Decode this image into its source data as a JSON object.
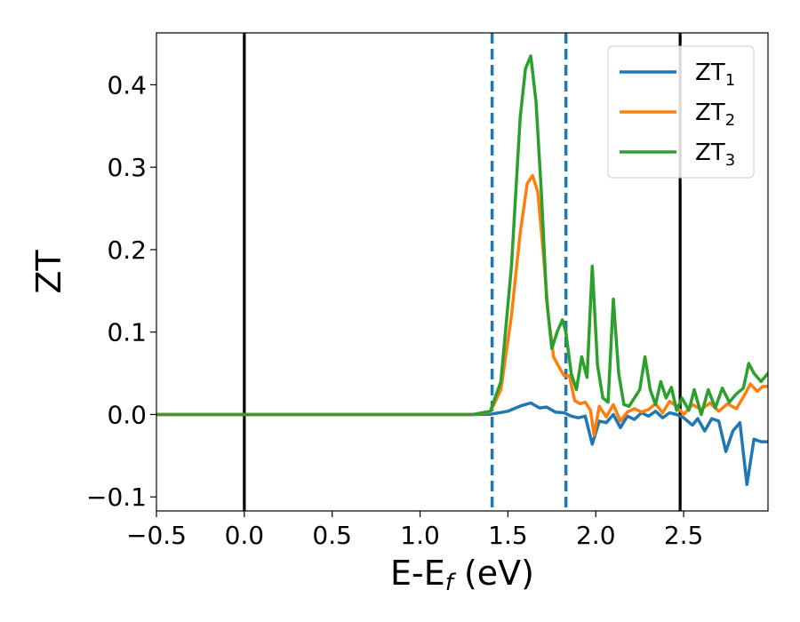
{
  "chart_data": {
    "type": "line",
    "title": "",
    "xlabel": "E-E",
    "xlabel_sub": "f",
    "xlabel_unit": " (eV)",
    "ylabel": "ZT",
    "xlim": [
      -0.5,
      2.98
    ],
    "ylim": [
      -0.117,
      0.463
    ],
    "xticks": [
      -0.5,
      0.0,
      0.5,
      1.0,
      1.5,
      2.0,
      2.5
    ],
    "xtick_labels": [
      "−0.5",
      "0.0",
      "0.5",
      "1.0",
      "1.5",
      "2.0",
      "2.5"
    ],
    "yticks": [
      -0.1,
      0.0,
      0.1,
      0.2,
      0.3,
      0.4
    ],
    "ytick_labels": [
      "−0.1",
      "0.0",
      "0.1",
      "0.2",
      "0.3",
      "0.4"
    ],
    "grid": false,
    "legend_position": "top-right",
    "vertical_lines": [
      {
        "x": 0.0,
        "style": "solid",
        "color": "#000000"
      },
      {
        "x": 2.48,
        "style": "solid",
        "color": "#000000"
      },
      {
        "x": 1.41,
        "style": "dashed",
        "color": "#1f77b4"
      },
      {
        "x": 1.83,
        "style": "dashed",
        "color": "#1f77b4"
      }
    ],
    "series": [
      {
        "name": "ZT",
        "sub": "1",
        "color": "#1f77b4",
        "x": [
          -0.5,
          1.3,
          1.4,
          1.5,
          1.58,
          1.63,
          1.68,
          1.72,
          1.77,
          1.82,
          1.86,
          1.9,
          1.94,
          1.98,
          2.02,
          2.06,
          2.1,
          2.14,
          2.18,
          2.22,
          2.26,
          2.3,
          2.34,
          2.38,
          2.42,
          2.46,
          2.5,
          2.55,
          2.58,
          2.62,
          2.66,
          2.7,
          2.74,
          2.78,
          2.82,
          2.86,
          2.9,
          2.94,
          2.98
        ],
        "y": [
          0,
          0,
          0.0003,
          0.004,
          0.011,
          0.014,
          0.008,
          0.009,
          0.003,
          0.002,
          -0.002,
          -0.004,
          -0.002,
          -0.036,
          -0.008,
          -0.01,
          0.0,
          -0.016,
          -0.002,
          -0.006,
          0.002,
          -0.002,
          0.004,
          -0.004,
          0.002,
          0.0,
          -0.004,
          -0.013,
          -0.005,
          -0.02,
          -0.005,
          -0.008,
          -0.045,
          -0.02,
          -0.01,
          -0.085,
          -0.03,
          -0.033,
          -0.033
        ]
      },
      {
        "name": "ZT",
        "sub": "2",
        "color": "#ff7f0e",
        "x": [
          -0.5,
          1.3,
          1.4,
          1.46,
          1.52,
          1.57,
          1.61,
          1.64,
          1.67,
          1.7,
          1.73,
          1.76,
          1.79,
          1.82,
          1.85,
          1.88,
          1.91,
          1.94,
          1.97,
          1.99,
          2.02,
          2.06,
          2.1,
          2.14,
          2.18,
          2.22,
          2.26,
          2.3,
          2.34,
          2.38,
          2.42,
          2.46,
          2.5,
          2.55,
          2.6,
          2.65,
          2.7,
          2.75,
          2.8,
          2.85,
          2.88,
          2.92,
          2.95,
          2.98
        ],
        "y": [
          0,
          0,
          0.003,
          0.03,
          0.12,
          0.22,
          0.28,
          0.29,
          0.27,
          0.2,
          0.12,
          0.07,
          0.058,
          0.047,
          0.047,
          0.017,
          0.013,
          0.015,
          0.005,
          -0.025,
          0.01,
          -0.003,
          0.012,
          -0.008,
          0.003,
          0.007,
          0.003,
          0.006,
          0.013,
          0.002,
          0.016,
          0.01,
          0.0,
          0.012,
          0.006,
          0.014,
          0.004,
          0.013,
          0.007,
          0.025,
          0.037,
          0.028,
          0.034,
          0.034
        ]
      },
      {
        "name": "ZT",
        "sub": "3",
        "color": "#2ca02c",
        "x": [
          -0.5,
          1.3,
          1.4,
          1.46,
          1.52,
          1.57,
          1.6,
          1.63,
          1.66,
          1.69,
          1.72,
          1.75,
          1.78,
          1.81,
          1.83,
          1.86,
          1.89,
          1.92,
          1.95,
          1.98,
          2.01,
          2.04,
          2.07,
          2.1,
          2.13,
          2.16,
          2.19,
          2.22,
          2.25,
          2.28,
          2.31,
          2.34,
          2.37,
          2.4,
          2.43,
          2.46,
          2.49,
          2.53,
          2.56,
          2.6,
          2.64,
          2.68,
          2.72,
          2.76,
          2.8,
          2.84,
          2.87,
          2.9,
          2.94,
          2.98
        ],
        "y": [
          0,
          0,
          0.004,
          0.04,
          0.18,
          0.36,
          0.42,
          0.435,
          0.38,
          0.27,
          0.14,
          0.08,
          0.1,
          0.115,
          0.1,
          0.05,
          0.03,
          0.07,
          0.045,
          0.18,
          0.06,
          0.02,
          0.015,
          0.14,
          0.05,
          0.012,
          0.01,
          0.02,
          0.03,
          0.07,
          0.03,
          0.012,
          0.04,
          0.02,
          0.033,
          0.005,
          0.02,
          0.005,
          0.03,
          0.0,
          0.03,
          0.008,
          0.032,
          0.015,
          0.025,
          0.032,
          0.062,
          0.05,
          0.04,
          0.05
        ]
      }
    ]
  }
}
